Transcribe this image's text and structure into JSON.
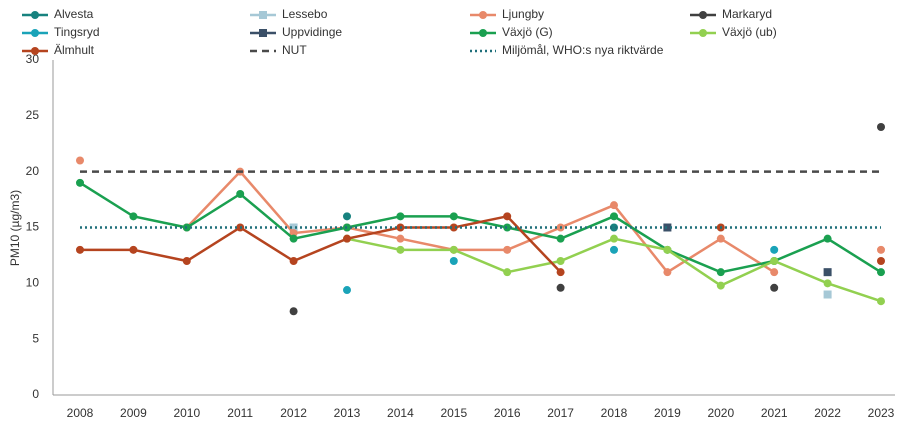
{
  "chart_data": {
    "type": "line",
    "y_label": "PM10 (µg/m3)",
    "categories": [
      "2008",
      "2009",
      "2010",
      "2011",
      "2012",
      "2013",
      "2014",
      "2015",
      "2016",
      "2017",
      "2018",
      "2019",
      "2020",
      "2021",
      "2022",
      "2023"
    ],
    "ylim": [
      0,
      30
    ],
    "yticks": [
      0,
      5,
      10,
      15,
      20,
      25,
      30
    ],
    "legend": "top",
    "series": [
      {
        "name": "Alvesta",
        "color": "#17827f",
        "marker": "circle",
        "dash": "solid",
        "values": [
          null,
          null,
          null,
          null,
          null,
          16,
          null,
          null,
          null,
          null,
          15,
          null,
          null,
          null,
          null,
          null
        ]
      },
      {
        "name": "Lessebo",
        "color": "#a6c8d6",
        "marker": "square",
        "dash": "solid",
        "values": [
          null,
          null,
          null,
          null,
          15,
          null,
          null,
          null,
          null,
          null,
          null,
          null,
          null,
          null,
          9,
          null
        ]
      },
      {
        "name": "Ljungby",
        "color": "#e8896a",
        "marker": "circle",
        "dash": "solid",
        "values": [
          21,
          null,
          15,
          20,
          14.5,
          15,
          14,
          13,
          13,
          15,
          17,
          11,
          14,
          11,
          null,
          13
        ]
      },
      {
        "name": "Markaryd",
        "color": "#404040",
        "marker": "circle",
        "dash": "solid",
        "values": [
          null,
          null,
          null,
          null,
          7.5,
          null,
          null,
          null,
          null,
          9.6,
          null,
          null,
          null,
          9.6,
          null,
          24
        ]
      },
      {
        "name": "Tingsryd",
        "color": "#1aa3b8",
        "marker": "circle",
        "dash": "solid",
        "values": [
          null,
          null,
          null,
          null,
          null,
          9.4,
          null,
          12,
          null,
          null,
          13,
          null,
          null,
          13,
          null,
          null
        ]
      },
      {
        "name": "Uppvidinge",
        "color": "#3b5068",
        "marker": "square",
        "dash": "solid",
        "values": [
          null,
          null,
          null,
          null,
          null,
          null,
          null,
          null,
          null,
          null,
          null,
          15,
          null,
          null,
          11,
          null
        ]
      },
      {
        "name": "Växjö (G)",
        "color": "#1aa050",
        "marker": "circle",
        "dash": "solid",
        "values": [
          19,
          16,
          15,
          18,
          14,
          15,
          16,
          16,
          15,
          14,
          16,
          13,
          11,
          12,
          14,
          11
        ]
      },
      {
        "name": "Växjö (ub)",
        "color": "#92d050",
        "marker": "circle",
        "dash": "solid",
        "values": [
          null,
          null,
          null,
          null,
          null,
          14,
          13,
          13,
          11,
          12,
          14,
          13,
          9.8,
          12,
          10,
          8.4
        ]
      },
      {
        "name": "Älmhult",
        "color": "#b5441f",
        "marker": "circle",
        "dash": "solid",
        "values": [
          13,
          13,
          12,
          15,
          12,
          14,
          15,
          15,
          16,
          11,
          null,
          null,
          15,
          null,
          null,
          12
        ]
      },
      {
        "name": "NUT",
        "color": "#4a4a4a",
        "marker": "none",
        "dash": "dashed",
        "values": [
          20,
          20,
          20,
          20,
          20,
          20,
          20,
          20,
          20,
          20,
          20,
          20,
          20,
          20,
          20,
          20
        ]
      },
      {
        "name": "Miljömål, WHO:s nya riktvärde",
        "color": "#1f6f7a",
        "marker": "none",
        "dash": "dotted",
        "values": [
          15,
          15,
          15,
          15,
          15,
          15,
          15,
          15,
          15,
          15,
          15,
          15,
          15,
          15,
          15,
          15
        ]
      }
    ]
  }
}
